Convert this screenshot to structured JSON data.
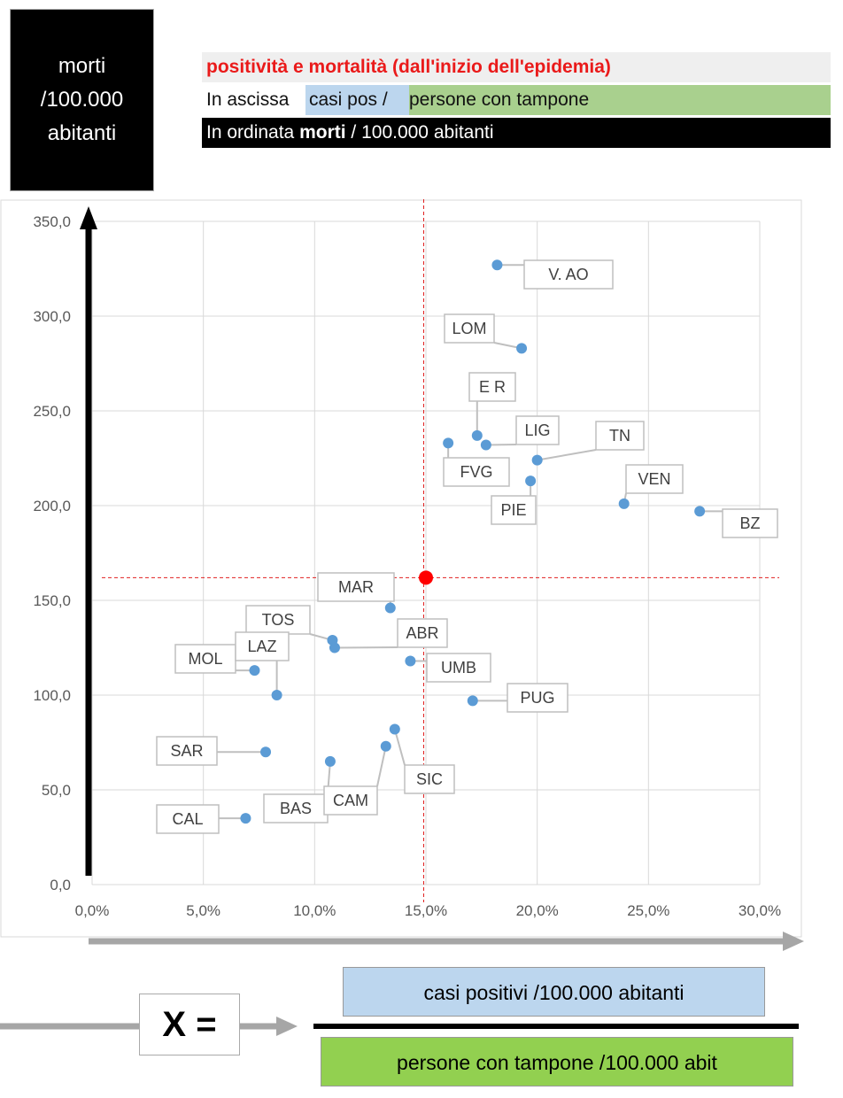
{
  "ylabel_box": {
    "text": "morti\n/100.000\nabitanti"
  },
  "header": {
    "line1": "positività e mortalità (dall'inizio dell'epidemia)",
    "line2_a": "In ascissa ",
    "line2_b": "casi pos / ",
    "line2_c": "persone con tampone",
    "line3_a": "In ordinata ",
    "line3_b": "morti",
    "line3_c": " / 100.000 abitanti"
  },
  "formula": {
    "x_label": "X =",
    "numerator": "casi positivi  /100.000 abitanti",
    "denominator": "persone con tampone  /100.000 abit"
  },
  "colors": {
    "point": "#5b9bd5",
    "reference_point": "#ff0000",
    "reference_lines": "#e02020",
    "header_line1_text": "#ea1a1a",
    "header_blue": "#bcd6ee",
    "header_green": "#a9d08e",
    "denominator_green": "#92d050"
  },
  "chart_data": {
    "type": "scatter",
    "xlim": [
      0,
      30
    ],
    "ylim": [
      0,
      350
    ],
    "x_unit": "%",
    "x_ticks": [
      "0,0%",
      "5,0%",
      "10,0%",
      "15,0%",
      "20,0%",
      "25,0%",
      "30,0%"
    ],
    "y_ticks": [
      "0,0",
      "50,0",
      "100,0",
      "150,0",
      "200,0",
      "250,0",
      "300,0",
      "350,0"
    ],
    "grid": true,
    "points": [
      {
        "label": "V. AO",
        "x": 18.2,
        "y": 327
      },
      {
        "label": "LOM",
        "x": 19.3,
        "y": 283
      },
      {
        "label": "E R",
        "x": 17.3,
        "y": 237
      },
      {
        "label": "LIG",
        "x": 17.7,
        "y": 232
      },
      {
        "label": "FVG",
        "x": 16.0,
        "y": 233
      },
      {
        "label": "TN",
        "x": 20.0,
        "y": 224
      },
      {
        "label": "PIE",
        "x": 19.7,
        "y": 213
      },
      {
        "label": "VEN",
        "x": 23.9,
        "y": 201
      },
      {
        "label": "BZ",
        "x": 27.3,
        "y": 197
      },
      {
        "label": "MAR",
        "x": 13.4,
        "y": 146
      },
      {
        "label": "TOS",
        "x": 10.8,
        "y": 129
      },
      {
        "label": "ABR",
        "x": 10.9,
        "y": 125
      },
      {
        "label": "MOL",
        "x": 7.3,
        "y": 113
      },
      {
        "label": "LAZ",
        "x": 8.3,
        "y": 100
      },
      {
        "label": "UMB",
        "x": 14.3,
        "y": 118
      },
      {
        "label": "PUG",
        "x": 17.1,
        "y": 97
      },
      {
        "label": "SAR",
        "x": 7.8,
        "y": 70
      },
      {
        "label": "BAS",
        "x": 10.7,
        "y": 65
      },
      {
        "label": "CAM",
        "x": 13.2,
        "y": 73
      },
      {
        "label": "SIC",
        "x": 13.6,
        "y": 82
      },
      {
        "label": "CAL",
        "x": 6.9,
        "y": 35
      }
    ],
    "reference_point": {
      "x": 15.0,
      "y": 162
    },
    "reference_lines": {
      "x": 14.9,
      "y": 162
    }
  }
}
